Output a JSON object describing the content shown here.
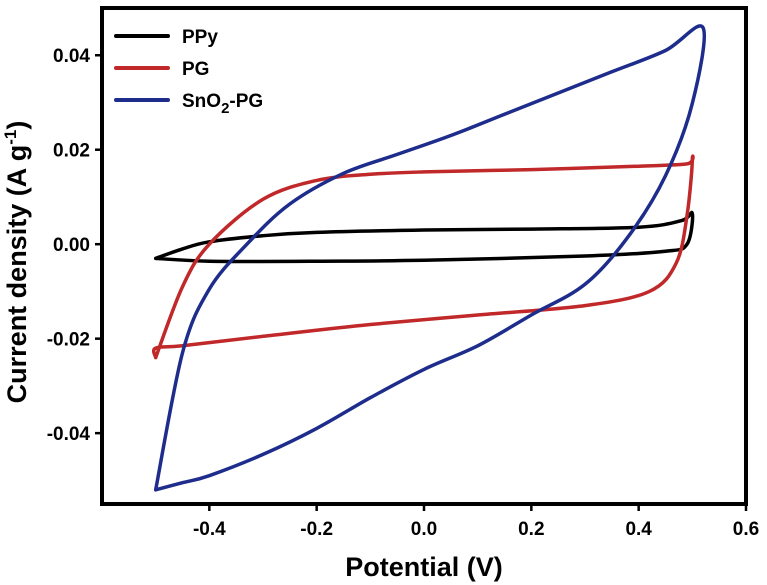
{
  "chart_data": {
    "type": "line",
    "xlabel": "Potential (V)",
    "ylabel_main": "Current density (A g",
    "ylabel_sup": "-1",
    "ylabel_close": ")",
    "xlim": [
      -0.6,
      0.6
    ],
    "ylim": [
      -0.055,
      0.05
    ],
    "xticks": [
      -0.4,
      -0.2,
      0.0,
      0.2,
      0.4,
      0.6
    ],
    "xtick_labels": [
      "-0.4",
      "-0.2",
      "0.0",
      "0.2",
      "0.4",
      "0.6"
    ],
    "yticks": [
      -0.04,
      -0.02,
      0.0,
      0.02,
      0.04
    ],
    "ytick_labels": [
      "-0.04",
      "-0.02",
      "0.00",
      "0.02",
      "0.04"
    ],
    "grid": false,
    "legend_position": "top-left",
    "series": [
      {
        "name": "PPy",
        "name_parts": [
          "PPy"
        ],
        "color": "#000000",
        "x": [
          -0.5,
          -0.45,
          -0.4,
          -0.3,
          -0.2,
          0.0,
          0.2,
          0.4,
          0.48,
          0.5,
          0.49,
          0.45,
          0.3,
          0.0,
          -0.2,
          -0.4,
          -0.5
        ],
        "y": [
          -0.003,
          -0.001,
          0.0005,
          0.0018,
          0.0025,
          0.003,
          0.0032,
          0.0036,
          0.005,
          0.0065,
          0.0,
          -0.0015,
          -0.0025,
          -0.0034,
          -0.0036,
          -0.0036,
          -0.003
        ]
      },
      {
        "name": "PG",
        "name_parts": [
          "PG"
        ],
        "color": "#c0282a",
        "x": [
          -0.5,
          -0.45,
          -0.4,
          -0.3,
          -0.2,
          -0.1,
          0.0,
          0.2,
          0.4,
          0.49,
          0.5,
          0.49,
          0.47,
          0.42,
          0.3,
          0.1,
          -0.1,
          -0.3,
          -0.45,
          -0.5,
          -0.5
        ],
        "y": [
          -0.024,
          -0.009,
          0.0,
          0.0095,
          0.0135,
          0.0148,
          0.0153,
          0.0158,
          0.0165,
          0.017,
          0.018,
          0.006,
          -0.004,
          -0.01,
          -0.013,
          -0.015,
          -0.017,
          -0.0195,
          -0.0215,
          -0.022,
          -0.024
        ]
      },
      {
        "name": "SnO2-PG",
        "name_parts": [
          "SnO",
          "2",
          "-PG"
        ],
        "color": "#1e2d8c",
        "x": [
          -0.5,
          -0.45,
          -0.4,
          -0.33,
          -0.25,
          -0.15,
          -0.05,
          0.05,
          0.15,
          0.25,
          0.35,
          0.45,
          0.52,
          0.5,
          0.45,
          0.38,
          0.3,
          0.2,
          0.1,
          0.0,
          -0.1,
          -0.2,
          -0.3,
          -0.4,
          -0.45,
          -0.5
        ],
        "y": [
          -0.052,
          -0.023,
          -0.0095,
          0.0,
          0.0085,
          0.015,
          0.019,
          0.023,
          0.0275,
          0.032,
          0.0365,
          0.041,
          0.0458,
          0.0298,
          0.0145,
          0.0015,
          -0.0085,
          -0.015,
          -0.0215,
          -0.0265,
          -0.0325,
          -0.039,
          -0.0445,
          -0.049,
          -0.0505,
          -0.052
        ]
      }
    ]
  }
}
